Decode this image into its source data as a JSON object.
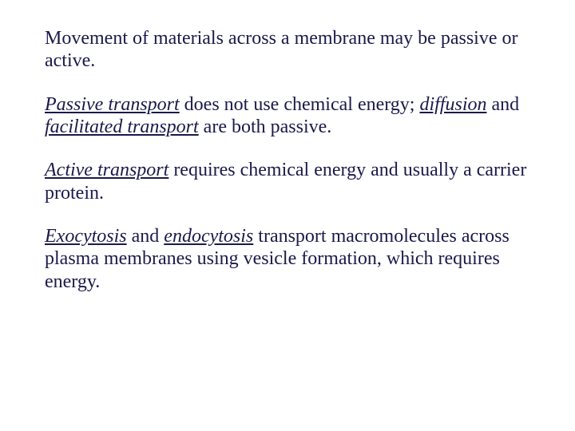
{
  "text_color": "#1a1a4a",
  "background_color": "#ffffff",
  "font_family": "Times New Roman",
  "font_size_pt": 24,
  "p1": {
    "t1": "Movement of materials across a membrane may be passive or active."
  },
  "p2": {
    "t1": "Passive transport",
    "t2": " does not use chemical energy; ",
    "t3": "diffusion",
    "t4": " and ",
    "t5": "facilitated transport",
    "t6": " are both passive."
  },
  "p3": {
    "t1": "Active transport",
    "t2": " requires chemical energy and usually a carrier protein."
  },
  "p4": {
    "t1": "Exocytosis",
    "t2": " and ",
    "t3": "endocytosis",
    "t4": " transport macromolecules across plasma membranes using vesicle formation, which requires energy."
  }
}
